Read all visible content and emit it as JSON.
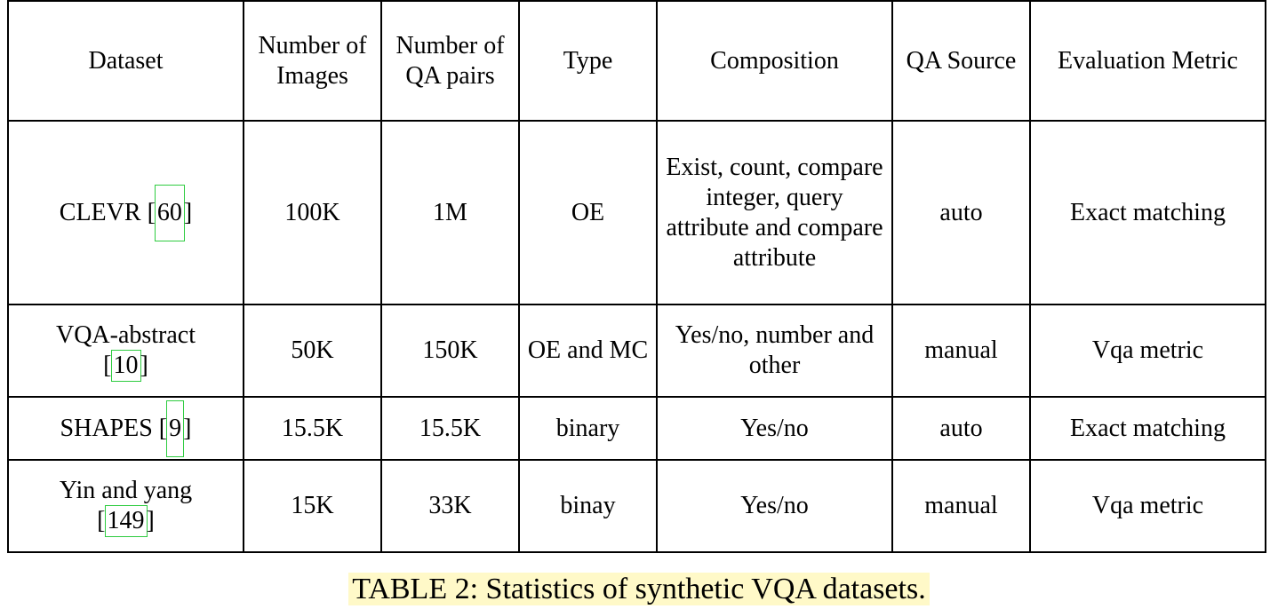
{
  "table": {
    "headers": [
      "Dataset",
      "Number of Images",
      "Number of QA pairs",
      "Type",
      "Composition",
      "QA Source",
      "Evaluation Metric"
    ],
    "rows": [
      {
        "dataset": "CLEVR",
        "cite": "60",
        "images": "100K",
        "qa_pairs": "1M",
        "type": "OE",
        "composition": "Exist, count, compare integer, query attribute and compare attribute",
        "qa_source": "auto",
        "metric": "Exact matching"
      },
      {
        "dataset": "VQA-abstract",
        "cite": "10",
        "images": "50K",
        "qa_pairs": "150K",
        "type": "OE and MC",
        "composition": "Yes/no, number and other",
        "qa_source": "manual",
        "metric": "Vqa metric"
      },
      {
        "dataset": "SHAPES",
        "cite": "9",
        "images": "15.5K",
        "qa_pairs": "15.5K",
        "type": "binary",
        "composition": "Yes/no",
        "qa_source": "auto",
        "metric": "Exact matching"
      },
      {
        "dataset": "Yin and yang",
        "cite": "149",
        "images": "15K",
        "qa_pairs": "33K",
        "type": "binay",
        "composition": "Yes/no",
        "qa_source": "manual",
        "metric": "Vqa metric"
      }
    ]
  },
  "caption": "TABLE 2: Statistics of synthetic VQA datasets.",
  "colors": {
    "citation_box": "#2ecc40",
    "caption_highlight": "#fff9c8"
  }
}
